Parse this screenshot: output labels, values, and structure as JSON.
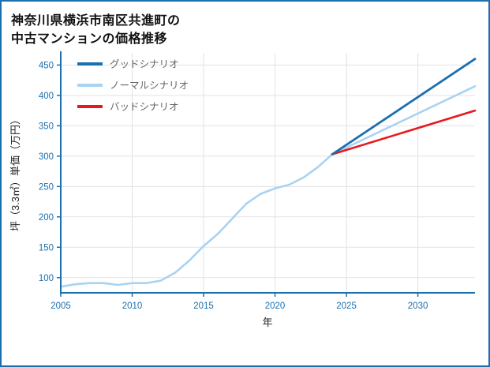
{
  "frame": {
    "border_color": "#1a6faf",
    "background": "#ffffff"
  },
  "title": {
    "line1": "神奈川県横浜市南区共進町の",
    "line2": "中古マンションの価格推移"
  },
  "chart_data": {
    "type": "line",
    "title": "神奈川県横浜市南区共進町の中古マンションの価格推移",
    "xlabel": "年",
    "ylabel": "坪（3.3㎡）単価（万円）",
    "xlim": [
      2005,
      2034
    ],
    "ylim": [
      75,
      470
    ],
    "xticks": [
      2005,
      2010,
      2015,
      2020,
      2025,
      2030
    ],
    "yticks": [
      100,
      150,
      200,
      250,
      300,
      350,
      400,
      450
    ],
    "grid": true,
    "legend_position": "top-left",
    "axis_color": "#1a6faf",
    "grid_color": "#e2e2e8",
    "legend_order": [
      "グッドシナリオ",
      "ノーマルシナリオ",
      "バッドシナリオ"
    ],
    "series": [
      {
        "name": "ノーマルシナリオ",
        "color": "#a9d3f2",
        "width": 2.6,
        "x": [
          2005,
          2006,
          2007,
          2008,
          2009,
          2010,
          2011,
          2012,
          2013,
          2014,
          2015,
          2016,
          2017,
          2018,
          2019,
          2020,
          2021,
          2022,
          2023,
          2024,
          2034
        ],
        "values": [
          85,
          89,
          91,
          91,
          88,
          91,
          91,
          95,
          108,
          128,
          152,
          172,
          197,
          222,
          238,
          247,
          253,
          265,
          282,
          303,
          415
        ]
      },
      {
        "name": "バッドシナリオ",
        "color": "#e8191c",
        "width": 2.6,
        "x": [
          2024,
          2034
        ],
        "values": [
          303,
          375
        ]
      },
      {
        "name": "グッドシナリオ",
        "color": "#1a6faf",
        "width": 2.8,
        "x": [
          2024,
          2034
        ],
        "values": [
          303,
          460
        ]
      }
    ]
  }
}
